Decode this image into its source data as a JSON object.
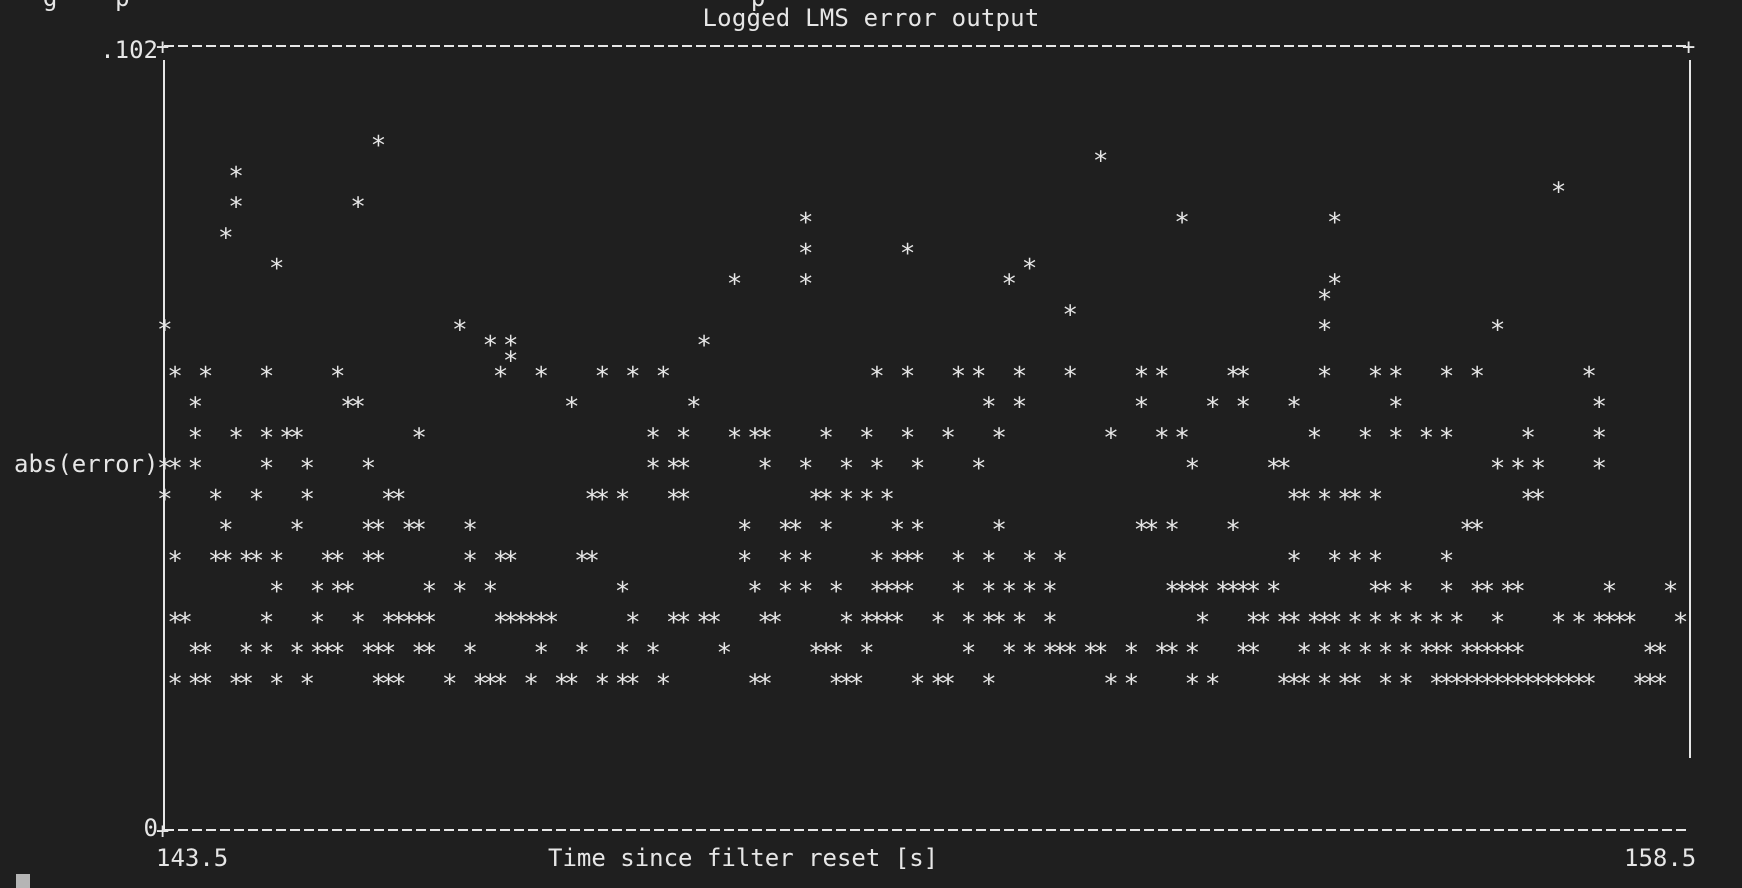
{
  "terminal": {
    "cursor_icon": "block-cursor-icon"
  },
  "chart_data": {
    "type": "scatter",
    "title": "Logged LMS error output",
    "xlabel": "Time since filter reset [s]",
    "ylabel": "abs(error)",
    "x_tick_labels": [
      "143.5",
      "158.5"
    ],
    "y_tick_labels": [
      ".102",
      "0"
    ],
    "xlim": [
      143.5,
      158.5
    ],
    "ylim": [
      0,
      0.102
    ],
    "grid": false,
    "marker": "*",
    "points": [
      [
        143.5,
        0.066
      ],
      [
        144.1,
        0.078
      ],
      [
        144.2,
        0.082
      ],
      [
        144.2,
        0.086
      ],
      [
        144.6,
        0.074
      ],
      [
        145.4,
        0.082
      ],
      [
        145.6,
        0.09
      ],
      [
        146.4,
        0.066
      ],
      [
        146.7,
        0.064
      ],
      [
        146.8,
        0.06
      ],
      [
        146.9,
        0.064
      ],
      [
        146.9,
        0.062
      ],
      [
        152.7,
        0.088
      ],
      [
        153.5,
        0.08
      ],
      [
        149.8,
        0.08
      ],
      [
        149.8,
        0.072
      ],
      [
        149.8,
        0.076
      ],
      [
        150.8,
        0.076
      ],
      [
        149.1,
        0.072
      ],
      [
        148.8,
        0.064
      ],
      [
        152.0,
        0.074
      ],
      [
        152.4,
        0.068
      ],
      [
        154.9,
        0.07
      ],
      [
        154.9,
        0.066
      ],
      [
        155.0,
        0.072
      ],
      [
        155.0,
        0.08
      ],
      [
        151.8,
        0.072
      ],
      [
        157.2,
        0.084
      ],
      [
        156.6,
        0.066
      ]
    ],
    "dense_rows": [
      {
        "y": 0.06,
        "x": [
          143.6,
          143.9,
          144.5,
          145.2,
          147.2,
          147.8,
          148.1,
          148.4,
          150.5,
          150.8,
          151.3,
          151.5,
          151.9,
          152.4,
          153.1,
          153.3,
          154.0,
          154.1,
          154.9,
          155.4,
          155.6,
          156.1,
          156.4,
          157.5
        ]
      },
      {
        "y": 0.056,
        "x": [
          143.8,
          145.3,
          145.4,
          147.5,
          148.7,
          151.6,
          151.9,
          153.1,
          153.8,
          154.1,
          154.6,
          155.6,
          157.6
        ]
      },
      {
        "y": 0.052,
        "x": [
          143.8,
          144.2,
          144.5,
          144.7,
          144.8,
          146.0,
          148.3,
          148.6,
          149.1,
          149.3,
          149.4,
          150.0,
          150.4,
          150.8,
          151.2,
          151.7,
          152.8,
          153.3,
          153.5,
          154.8,
          155.3,
          155.6,
          155.9,
          156.1,
          156.9,
          157.6
        ]
      },
      {
        "y": 0.048,
        "x": [
          143.5,
          143.6,
          143.8,
          144.5,
          144.9,
          145.5,
          148.3,
          148.5,
          148.6,
          149.4,
          149.8,
          150.2,
          150.5,
          150.9,
          151.5,
          153.6,
          154.4,
          154.5,
          156.6,
          156.8,
          157.0,
          157.6
        ]
      },
      {
        "y": 0.044,
        "x": [
          143.5,
          144.0,
          144.4,
          144.9,
          145.7,
          145.8,
          147.7,
          147.8,
          148.0,
          148.5,
          148.6,
          149.9,
          150.0,
          150.2,
          150.4,
          150.6,
          154.6,
          154.7,
          154.9,
          155.1,
          155.2,
          155.4,
          156.9,
          157.0
        ]
      },
      {
        "y": 0.04,
        "x": [
          144.1,
          144.8,
          145.5,
          145.6,
          145.9,
          146.0,
          146.5,
          149.2,
          149.6,
          149.7,
          150.0,
          150.7,
          150.9,
          151.7,
          153.1,
          153.2,
          153.4,
          154.0,
          156.3,
          156.4
        ]
      },
      {
        "y": 0.036,
        "x": [
          143.6,
          144.0,
          144.1,
          144.3,
          144.4,
          144.6,
          145.1,
          145.2,
          145.5,
          145.6,
          146.5,
          146.8,
          146.9,
          147.6,
          147.7,
          149.2,
          149.6,
          149.8,
          150.5,
          150.7,
          150.8,
          150.9,
          151.3,
          151.6,
          152.0,
          152.3,
          154.6,
          155.0,
          155.2,
          155.4,
          156.1
        ]
      },
      {
        "y": 0.032,
        "x": [
          144.6,
          145.0,
          145.2,
          145.3,
          146.1,
          146.4,
          146.7,
          148.0,
          149.3,
          149.6,
          149.8,
          150.1,
          150.5,
          150.6,
          150.7,
          150.8,
          151.3,
          151.6,
          151.8,
          152.0,
          152.2,
          153.4,
          153.5,
          153.6,
          153.7,
          153.9,
          154.0,
          154.1,
          154.2,
          154.4,
          155.4,
          155.5,
          155.7,
          156.1,
          156.4,
          156.5,
          156.7,
          156.8,
          157.7,
          158.3
        ]
      },
      {
        "y": 0.028,
        "x": [
          143.6,
          143.7,
          144.5,
          145.0,
          145.4,
          145.7,
          145.8,
          145.9,
          146.0,
          146.1,
          146.8,
          146.9,
          147.0,
          147.1,
          147.2,
          147.3,
          148.1,
          148.5,
          148.6,
          148.8,
          148.9,
          149.4,
          149.5,
          150.2,
          150.4,
          150.5,
          150.6,
          150.7,
          151.1,
          151.4,
          151.6,
          151.7,
          151.9,
          152.2,
          153.7,
          154.2,
          154.3,
          154.5,
          154.6,
          154.8,
          154.9,
          155.0,
          155.2,
          155.4,
          155.6,
          155.8,
          156.0,
          156.2,
          156.6,
          157.2,
          157.4,
          157.6,
          157.7,
          157.8,
          157.9,
          158.4
        ]
      },
      {
        "y": 0.024,
        "x": [
          143.8,
          143.9,
          144.3,
          144.5,
          144.8,
          145.0,
          145.1,
          145.2,
          145.5,
          145.6,
          145.7,
          146.0,
          146.1,
          146.5,
          147.2,
          147.6,
          148.0,
          148.3,
          149.0,
          149.9,
          150.0,
          150.1,
          150.4,
          151.4,
          151.8,
          152.0,
          152.2,
          152.3,
          152.4,
          152.6,
          152.7,
          153.0,
          153.3,
          153.4,
          153.6,
          154.1,
          154.2,
          154.7,
          154.9,
          155.1,
          155.3,
          155.5,
          155.7,
          155.9,
          156.0,
          156.1,
          156.3,
          156.4,
          156.5,
          156.6,
          156.7,
          156.8,
          158.1,
          158.2
        ]
      },
      {
        "y": 0.02,
        "x": [
          143.6,
          143.8,
          143.9,
          144.2,
          144.3,
          144.6,
          144.9,
          145.6,
          145.7,
          145.8,
          146.3,
          146.6,
          146.7,
          146.8,
          147.1,
          147.4,
          147.5,
          147.8,
          148.0,
          148.1,
          148.4,
          149.3,
          149.4,
          150.1,
          150.2,
          150.3,
          150.9,
          151.1,
          151.2,
          151.6,
          152.8,
          153.0,
          153.6,
          153.8,
          154.5,
          154.6,
          154.7,
          154.9,
          155.1,
          155.2,
          155.5,
          155.7,
          156.0,
          156.1,
          156.2,
          156.3,
          156.4,
          156.5,
          156.6,
          156.7,
          156.8,
          156.9,
          157.0,
          157.1,
          157.2,
          157.3,
          157.4,
          157.5,
          158.0,
          158.1,
          158.2
        ]
      }
    ]
  }
}
